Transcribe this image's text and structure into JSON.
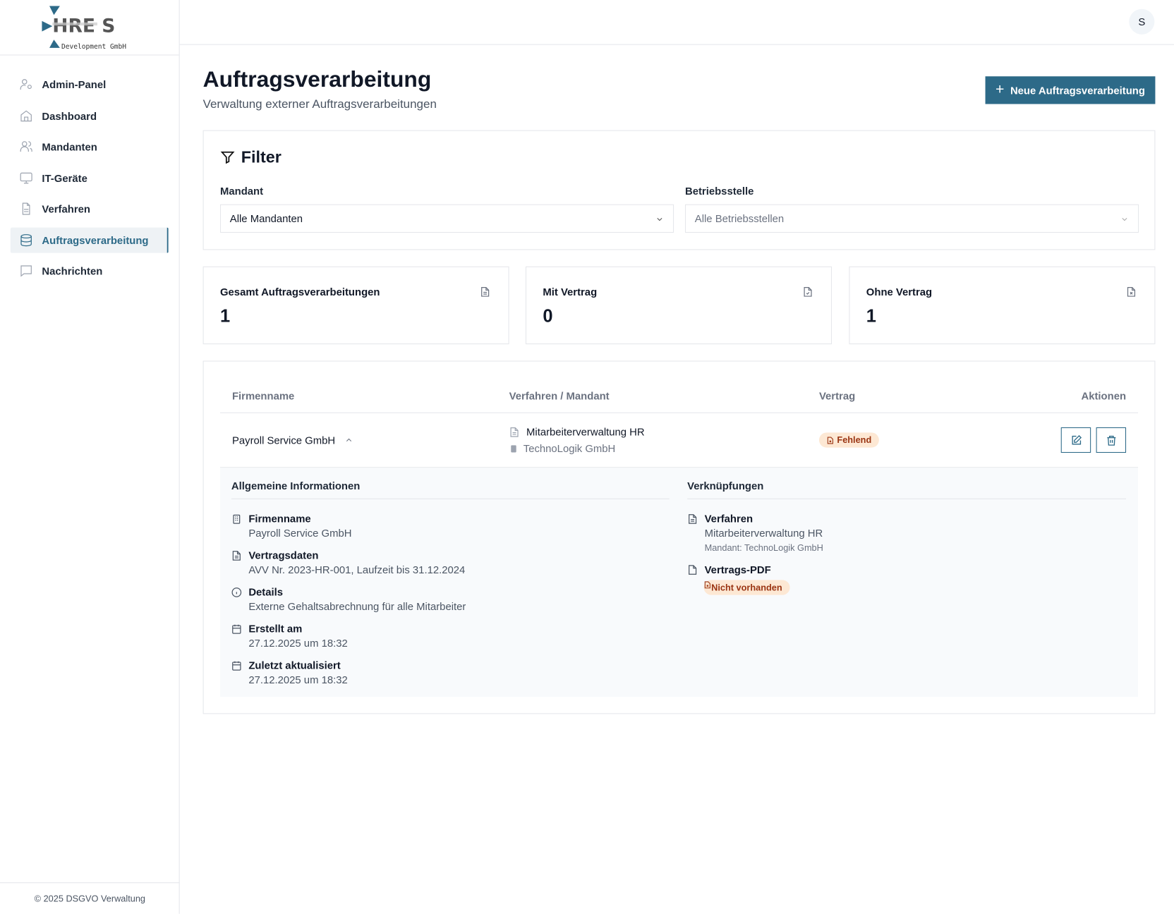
{
  "brand": {
    "logo_text": "HRE S",
    "logo_sub": "Development GmbH",
    "accent": "#2d6a88"
  },
  "sidebar": {
    "items": [
      {
        "label": "Admin-Panel",
        "icon": "user-cog-icon"
      },
      {
        "label": "Dashboard",
        "icon": "home-icon"
      },
      {
        "label": "Mandanten",
        "icon": "users-icon"
      },
      {
        "label": "IT-Geräte",
        "icon": "monitor-icon"
      },
      {
        "label": "Verfahren",
        "icon": "file-text-icon"
      },
      {
        "label": "Auftragsverarbeitung",
        "icon": "database-icon",
        "active": true
      },
      {
        "label": "Nachrichten",
        "icon": "message-icon"
      }
    ],
    "footer": "© 2025 DSGVO Verwaltung"
  },
  "header": {
    "avatar": "S"
  },
  "page": {
    "title": "Auftragsverarbeitung",
    "subtitle": "Verwaltung externer Auftragsverarbeitungen",
    "new_button": "Neue Auftragsverarbeitung"
  },
  "filter": {
    "title": "Filter",
    "mandant_label": "Mandant",
    "mandant_value": "Alle Mandanten",
    "betrieb_label": "Betriebsstelle",
    "betrieb_value": "Alle Betriebsstellen"
  },
  "stats": [
    {
      "label": "Gesamt Auftragsverarbeitungen",
      "value": "1"
    },
    {
      "label": "Mit Vertrag",
      "value": "0"
    },
    {
      "label": "Ohne Vertrag",
      "value": "1"
    }
  ],
  "table": {
    "headers": [
      "Firmenname",
      "Verfahren / Mandant",
      "Vertrag",
      "Aktionen"
    ],
    "row": {
      "firma": "Payroll Service GmbH",
      "verfahren": "Mitarbeiterverwaltung HR",
      "mandant": "TechnoLogik GmbH",
      "vertrag": "Fehlend"
    }
  },
  "detail": {
    "general_title": "Allgemeine Informationen",
    "links_title": "Verknüpfungen",
    "general": [
      {
        "k": "Firmenname",
        "v": "Payroll Service GmbH"
      },
      {
        "k": "Vertragsdaten",
        "v": "AVV Nr. 2023-HR-001, Laufzeit bis 31.12.2024"
      },
      {
        "k": "Details",
        "v": "Externe Gehaltsabrechnung für alle Mitarbeiter"
      },
      {
        "k": "Erstellt am",
        "v": "27.12.2025 um 18:32"
      },
      {
        "k": "Zuletzt aktualisiert",
        "v": "27.12.2025 um 18:32"
      }
    ],
    "verfahren_label": "Verfahren",
    "verfahren_value": "Mitarbeiterverwaltung HR",
    "verfahren_mandant": "Mandant: TechnoLogik GmbH",
    "pdf_label": "Vertrags-PDF",
    "pdf_value": "Nicht vorhanden"
  }
}
